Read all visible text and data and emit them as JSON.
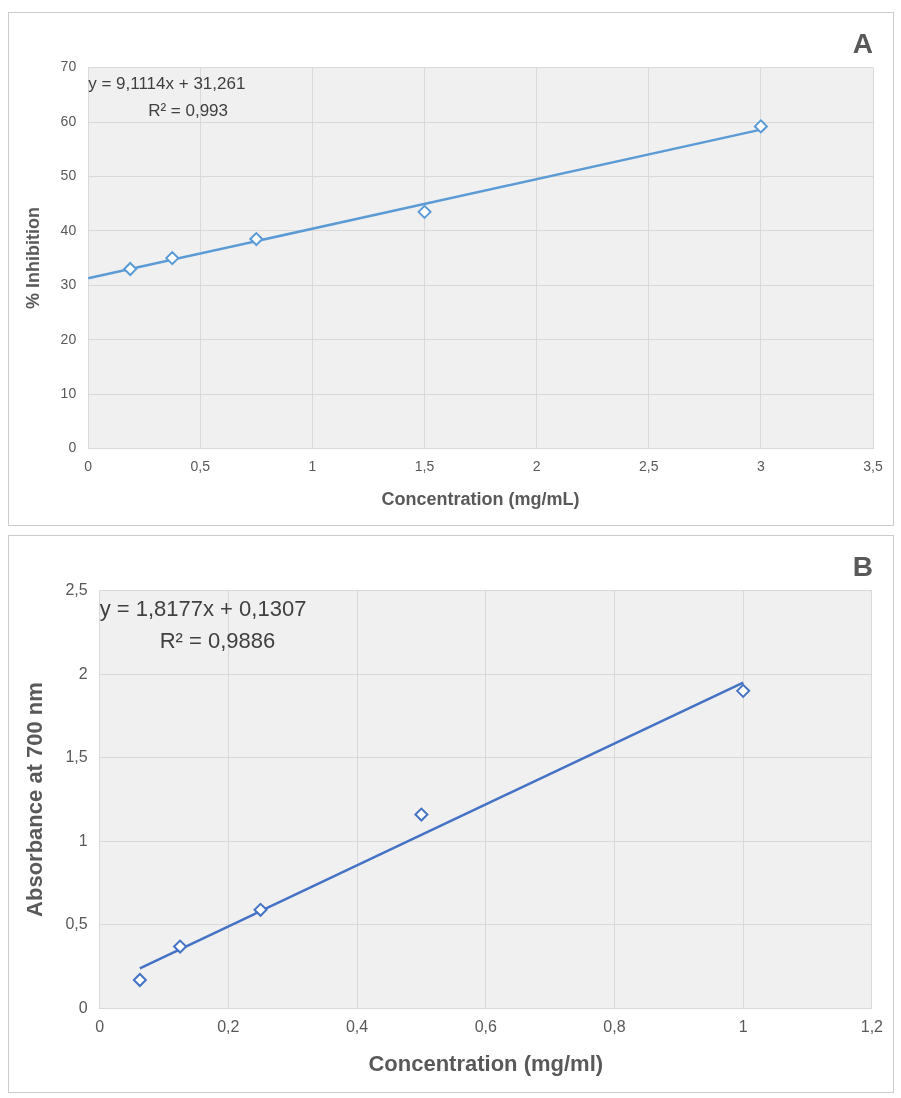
{
  "chart_data": [
    {
      "type": "scatter",
      "title": "A",
      "xlabel": "Concentration (mg/mL)",
      "ylabel": "% Inhibition",
      "annotations": [
        "y = 9,1114x + 31,261",
        "R² = 0,993"
      ],
      "xlim": [
        0,
        3.5
      ],
      "xticks": [
        0,
        {
          "value": 0.5,
          "label": "0,5"
        },
        1,
        {
          "value": 1.5,
          "label": "1,5"
        },
        2,
        {
          "value": 2.5,
          "label": "2,5"
        },
        3,
        {
          "value": 3.5,
          "label": "3,5"
        }
      ],
      "ylim": [
        0,
        70
      ],
      "yticks": [
        0,
        10,
        20,
        30,
        40,
        50,
        60,
        70
      ],
      "grid": true,
      "legend": false,
      "series": [
        {
          "marker": "diamond",
          "color": "#5b9bd5",
          "x": [
            0.1875,
            0.375,
            0.75,
            1.5,
            3
          ],
          "values": [
            33,
            35,
            38.5,
            43.5,
            59.2
          ]
        },
        {
          "type": "line",
          "marker": "none",
          "color": "#5b9bd5",
          "x": [
            0,
            3
          ],
          "values": [
            31.3,
            58.6
          ]
        }
      ]
    },
    {
      "type": "scatter",
      "title": "B",
      "xlabel": "Concentration (mg/ml)",
      "ylabel": "Absorbance at 700 nm",
      "annotations": [
        "y = 1,8177x + 0,1307",
        "R² = 0,9886"
      ],
      "xlim": [
        0,
        1.2
      ],
      "xticks": [
        0,
        {
          "value": 0.2,
          "label": "0,2"
        },
        {
          "value": 0.4,
          "label": "0,4"
        },
        {
          "value": 0.6,
          "label": "0,6"
        },
        {
          "value": 0.8,
          "label": "0,8"
        },
        1,
        {
          "value": 1.2,
          "label": "1,2"
        }
      ],
      "ylim": [
        0,
        2.5
      ],
      "yticks": [
        0,
        {
          "value": 0.5,
          "label": "0,5"
        },
        1,
        {
          "value": 1.5,
          "label": "1,5"
        },
        2,
        {
          "value": 2.5,
          "label": "2,5"
        }
      ],
      "grid": true,
      "legend": false,
      "series": [
        {
          "marker": "diamond",
          "color": "#4472c4",
          "x": [
            0.0625,
            0.125,
            0.25,
            0.5,
            1
          ],
          "values": [
            0.17,
            0.37,
            0.59,
            1.16,
            1.9
          ]
        },
        {
          "type": "line",
          "marker": "none",
          "color": "#4472c4",
          "x": [
            0.0625,
            1
          ],
          "values": [
            0.24,
            1.95
          ]
        }
      ]
    }
  ]
}
